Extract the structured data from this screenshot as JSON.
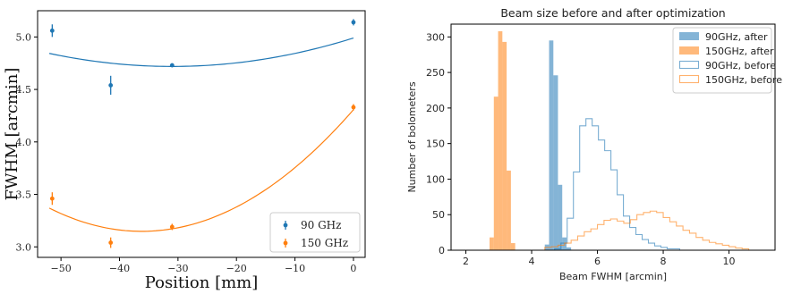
{
  "chart_data": [
    {
      "type": "scatter",
      "title": "",
      "xlabel": "Position [mm]",
      "ylabel": "FWHM [arcmin]",
      "xlim": [
        -54,
        2
      ],
      "ylim": [
        2.9,
        5.25
      ],
      "xticks": [
        -50,
        -40,
        -30,
        -20,
        -10,
        0
      ],
      "xtick_labels": [
        "−50",
        "−40",
        "−30",
        "−20",
        "−10",
        "0"
      ],
      "yticks": [
        3.0,
        3.5,
        4.0,
        4.5,
        5.0
      ],
      "ytick_labels": [
        "3.0",
        "3.5",
        "4.0",
        "4.5",
        "5.0"
      ],
      "legend_position": "lower-right",
      "series": [
        {
          "name": "90 GHz",
          "color": "#1f77b4",
          "x": [
            -51.5,
            -41.5,
            -31,
            0
          ],
          "y": [
            5.06,
            4.54,
            4.73,
            5.14
          ],
          "yerr": [
            0.06,
            0.09,
            0.01,
            0.03
          ],
          "fit_quadratic": [
            0.000282,
            0.01748,
            4.99
          ],
          "fit_range": [
            -52,
            0
          ]
        },
        {
          "name": "150 GHz",
          "color": "#ff7f0e",
          "x": [
            -51.5,
            -41.5,
            -31,
            0
          ],
          "y": [
            3.46,
            3.04,
            3.19,
            4.33
          ],
          "yerr": [
            0.06,
            0.05,
            0.03,
            0.03
          ],
          "fit_quadratic": [
            0.000885,
            0.06405,
            4.307
          ],
          "fit_range": [
            -52,
            0
          ]
        }
      ]
    },
    {
      "type": "histogram",
      "title": "Beam size before and after optimization",
      "xlabel": "Beam FWHM [arcmin]",
      "ylabel": "Number of bolometers",
      "xlim": [
        1.55,
        11.4
      ],
      "ylim": [
        0,
        318
      ],
      "xticks": [
        2,
        4,
        6,
        8,
        10
      ],
      "xtick_labels": [
        "2",
        "4",
        "6",
        "8",
        "10"
      ],
      "yticks": [
        0,
        50,
        100,
        150,
        200,
        250,
        300
      ],
      "ytick_labels": [
        "0",
        "50",
        "100",
        "150",
        "200",
        "250",
        "300"
      ],
      "legend_position": "upper-right",
      "series": [
        {
          "name": "90GHz, after",
          "color": "#1f77b4",
          "style": "filled",
          "bins": [
            [
              4.4,
              4.53,
              8
            ],
            [
              4.53,
              4.66,
              295
            ],
            [
              4.66,
              4.8,
              246
            ],
            [
              4.8,
              4.93,
              92
            ],
            [
              4.93,
              5.06,
              18
            ],
            [
              5.06,
              5.2,
              4
            ]
          ]
        },
        {
          "name": "150GHz, after",
          "color": "#ff7f0e",
          "style": "filled",
          "bins": [
            [
              2.72,
              2.85,
              18
            ],
            [
              2.85,
              2.98,
              216
            ],
            [
              2.98,
              3.11,
              308
            ],
            [
              3.11,
              3.24,
              293
            ],
            [
              3.24,
              3.37,
              112
            ],
            [
              3.37,
              3.5,
              10
            ]
          ]
        },
        {
          "name": "90GHz, before",
          "color": "#1f77b4",
          "style": "step",
          "bins": [
            [
              4.7,
              4.89,
              2
            ],
            [
              4.89,
              5.08,
              10
            ],
            [
              5.08,
              5.27,
              45
            ],
            [
              5.27,
              5.46,
              110
            ],
            [
              5.46,
              5.65,
              175
            ],
            [
              5.65,
              5.84,
              185
            ],
            [
              5.84,
              6.03,
              175
            ],
            [
              6.03,
              6.22,
              155
            ],
            [
              6.22,
              6.41,
              140
            ],
            [
              6.41,
              6.6,
              113
            ],
            [
              6.6,
              6.79,
              78
            ],
            [
              6.79,
              6.98,
              48
            ],
            [
              6.98,
              7.17,
              32
            ],
            [
              7.17,
              7.36,
              22
            ],
            [
              7.36,
              7.55,
              15
            ],
            [
              7.55,
              7.74,
              10
            ],
            [
              7.74,
              7.93,
              6
            ],
            [
              7.93,
              8.12,
              4
            ],
            [
              8.12,
              8.5,
              2
            ]
          ]
        },
        {
          "name": "150GHz, before",
          "color": "#ff7f0e",
          "style": "step",
          "bins": [
            [
              4.4,
              4.6,
              4
            ],
            [
              4.6,
              4.8,
              5
            ],
            [
              4.8,
              5.0,
              7
            ],
            [
              5.0,
              5.2,
              10
            ],
            [
              5.2,
              5.4,
              14
            ],
            [
              5.4,
              5.6,
              20
            ],
            [
              5.6,
              5.8,
              26
            ],
            [
              5.8,
              6.0,
              30
            ],
            [
              6.0,
              6.2,
              36
            ],
            [
              6.2,
              6.4,
              42
            ],
            [
              6.4,
              6.6,
              44
            ],
            [
              6.6,
              6.8,
              41
            ],
            [
              6.8,
              7.0,
              38
            ],
            [
              7.0,
              7.2,
              43
            ],
            [
              7.2,
              7.4,
              50
            ],
            [
              7.4,
              7.6,
              53
            ],
            [
              7.6,
              7.8,
              55
            ],
            [
              7.8,
              8.0,
              53
            ],
            [
              8.0,
              8.2,
              46
            ],
            [
              8.2,
              8.4,
              40
            ],
            [
              8.4,
              8.6,
              34
            ],
            [
              8.6,
              8.8,
              28
            ],
            [
              8.8,
              9.0,
              24
            ],
            [
              9.0,
              9.2,
              18
            ],
            [
              9.2,
              9.4,
              14
            ],
            [
              9.4,
              9.6,
              11
            ],
            [
              9.6,
              9.8,
              9
            ],
            [
              9.8,
              10.0,
              7
            ],
            [
              10.0,
              10.2,
              5
            ],
            [
              10.2,
              10.4,
              3
            ],
            [
              10.4,
              10.6,
              2
            ]
          ]
        }
      ]
    }
  ]
}
